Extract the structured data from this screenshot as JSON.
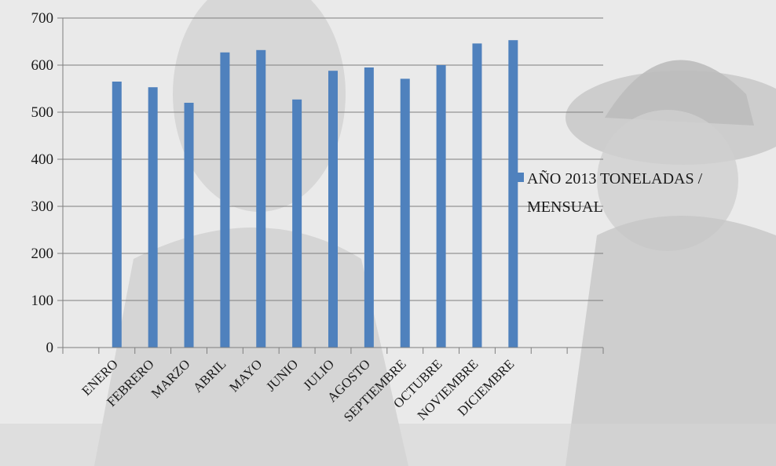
{
  "chart_data": {
    "type": "bar",
    "categories": [
      "ENERO",
      "FEBRERO",
      "MARZO",
      "ABRIL",
      "MAYO",
      "JUNIO",
      "JULIO",
      "AGOSTO",
      "SEPTIEMBRE",
      "OCTUBRE",
      "NOVIEMBRE",
      "DICIEMBRE"
    ],
    "series": [
      {
        "name": "AÑO 2013 TONELADAS / MENSUAL",
        "values": [
          565,
          553,
          520,
          627,
          632,
          527,
          588,
          595,
          571,
          600,
          646,
          653
        ]
      }
    ],
    "ylim": [
      0,
      700
    ],
    "yticks": [
      0,
      100,
      200,
      300,
      400,
      500,
      600,
      700
    ],
    "grid": true,
    "legend_position": "right",
    "colors": {
      "bar": "#4f81bd"
    },
    "legend_lines": [
      "AÑO 2013 TONELADAS /",
      "MENSUAL"
    ]
  }
}
